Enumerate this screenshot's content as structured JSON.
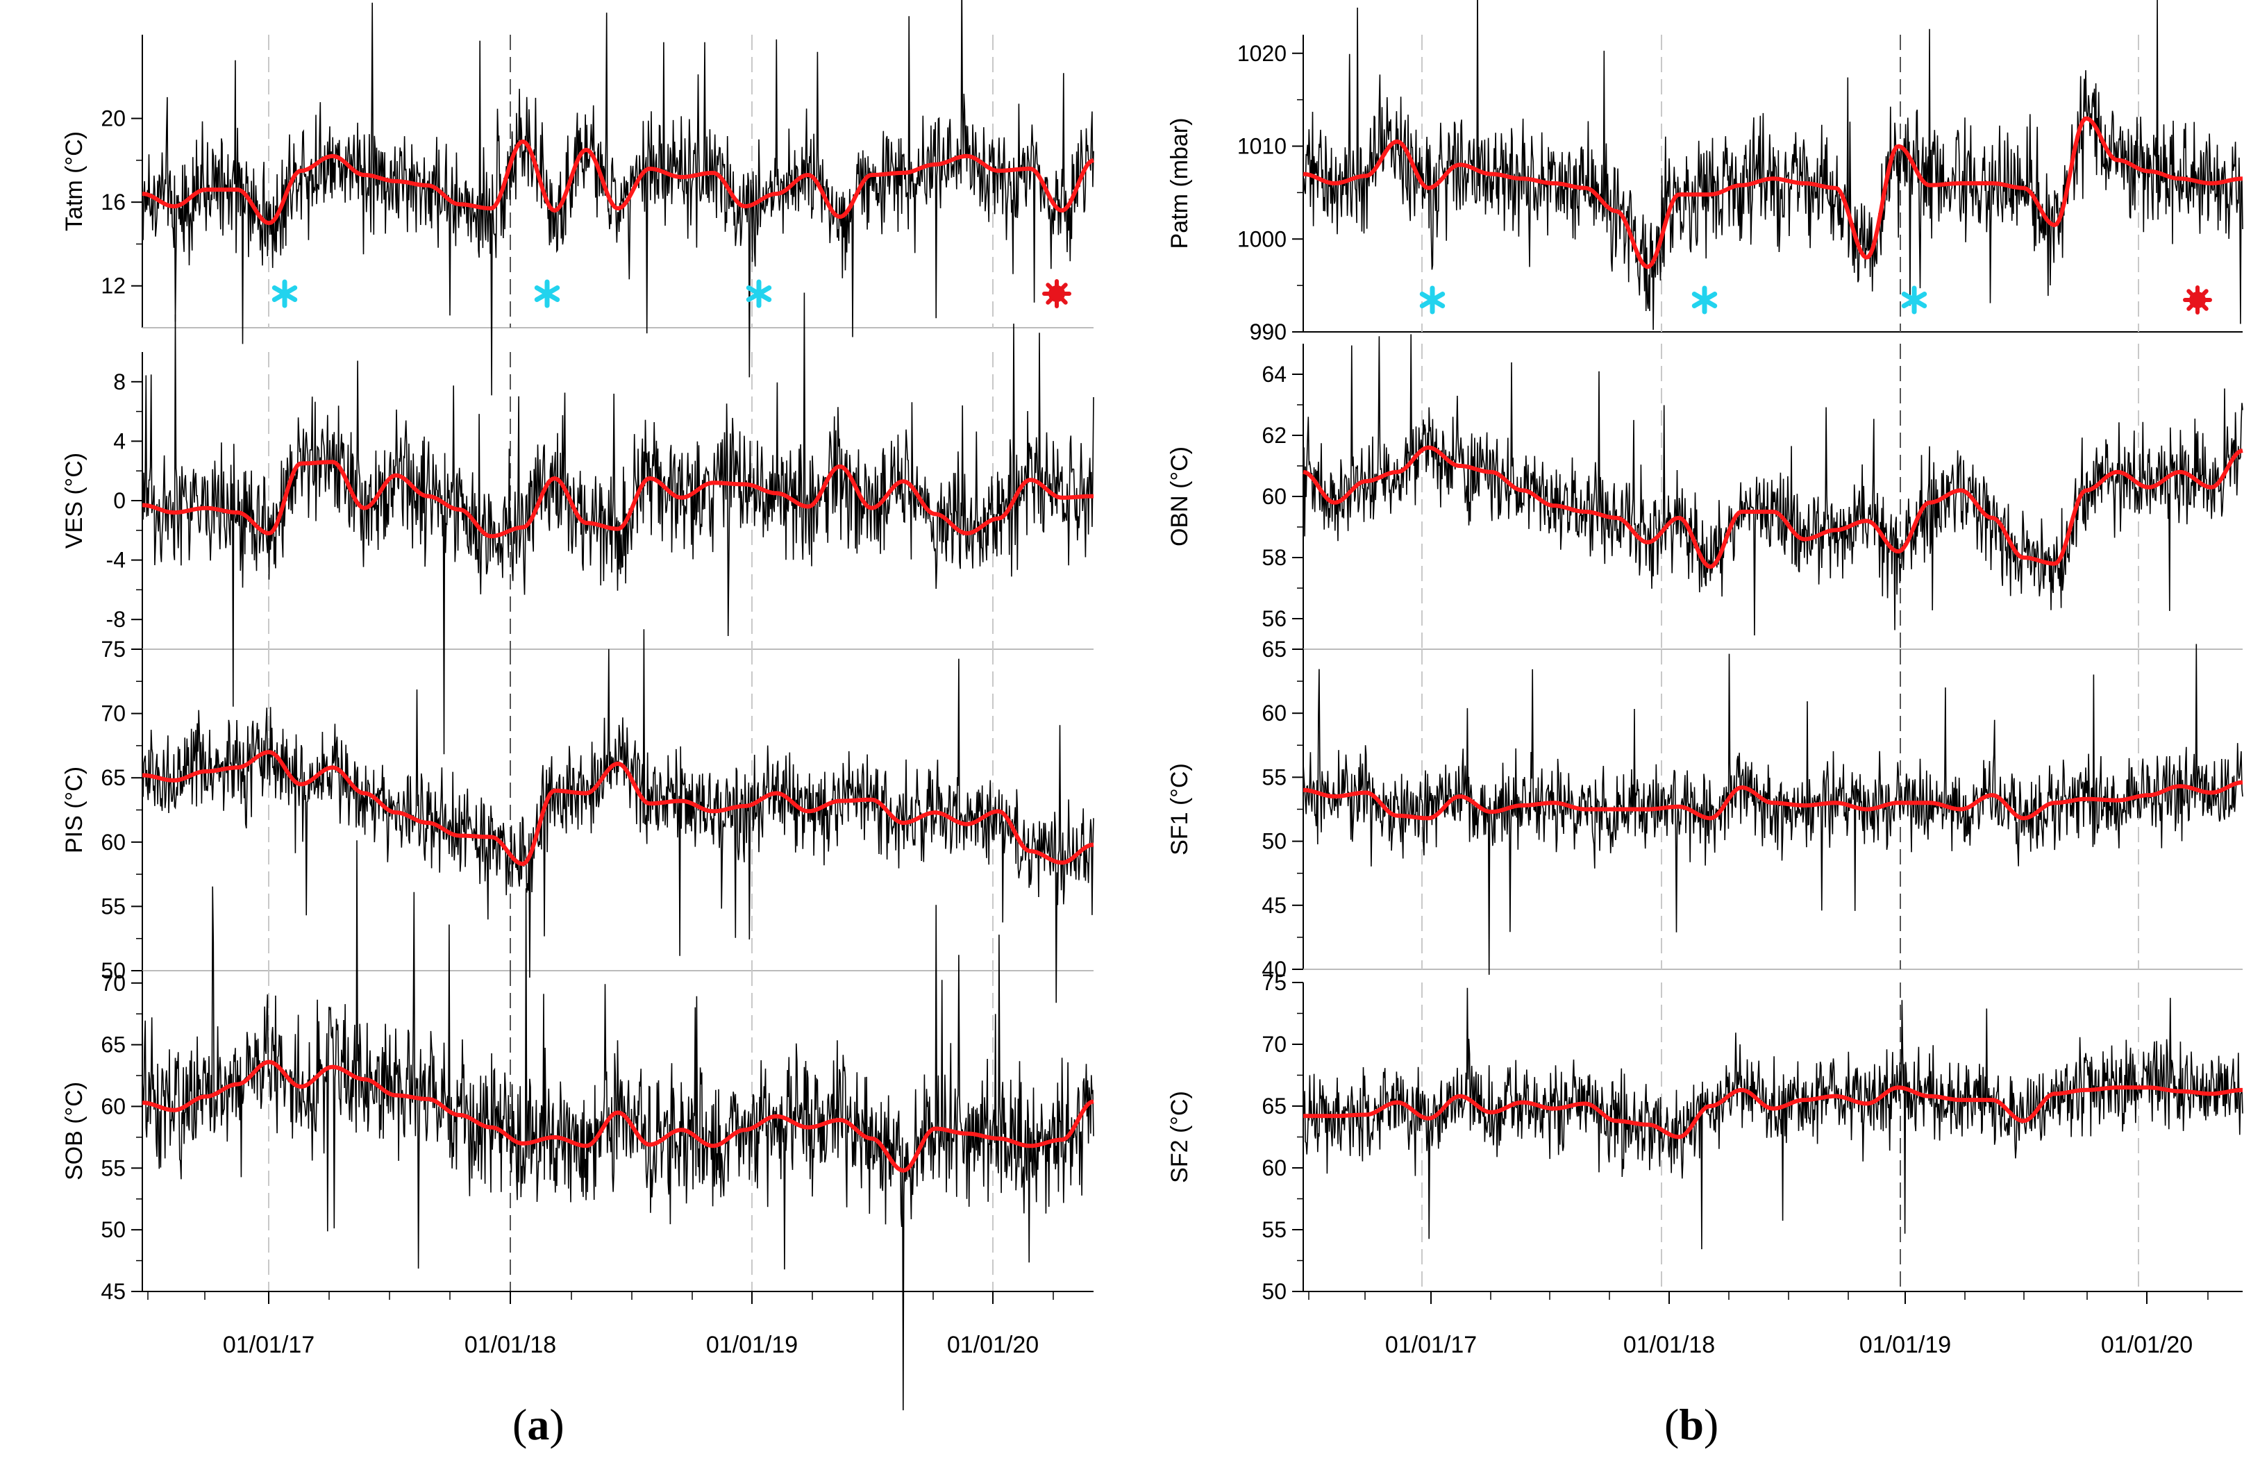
{
  "figure": {
    "panel_labels": [
      {
        "open": "(",
        "letter": "a",
        "close": ")"
      },
      {
        "open": "(",
        "letter": "b",
        "close": ")"
      }
    ]
  },
  "colors": {
    "raw": "#000000",
    "smooth": "#ff1a1a",
    "cyan_marker": "#22d3ee",
    "red_marker": "#e8141c",
    "event_line": "#555555"
  },
  "chart_data": [
    {
      "type": "line",
      "panel": "a",
      "ylabel": "Tatm (°C)",
      "ylim": [
        10,
        24
      ],
      "yticks": [
        12,
        16,
        20
      ],
      "base": 16.6,
      "amp": 1.8,
      "smooth_knots": [
        16.4,
        15.8,
        16.6,
        16.6,
        15,
        17.5,
        18.2,
        17.3,
        17,
        16.8,
        15.9,
        15.7,
        18.9,
        15.6,
        18.5,
        15.7,
        17.6,
        17.2,
        17.4,
        15.8,
        16.4,
        17.3,
        15.3,
        17.3,
        17.4,
        17.8,
        18.2,
        17.5,
        17.6,
        15.6,
        18
      ]
    },
    {
      "type": "line",
      "panel": "a",
      "ylabel": "VES (°C)",
      "ylim": [
        -10,
        10
      ],
      "yticks": [
        -8,
        -4,
        0,
        4,
        8
      ],
      "base": 0,
      "amp": 2.8,
      "smooth_knots": [
        -0.3,
        -0.8,
        -0.5,
        -0.8,
        -2.2,
        2.5,
        2.6,
        -0.5,
        1.7,
        0.3,
        -0.6,
        -2.4,
        -1.8,
        1.5,
        -1.5,
        -1.9,
        1.5,
        0.2,
        1.2,
        1.1,
        0.5,
        -0.4,
        2.3,
        -0.5,
        1.3,
        -0.9,
        -2.2,
        -1.2,
        1.4,
        0.2,
        0.3
      ]
    },
    {
      "type": "line",
      "panel": "a",
      "ylabel": "PIS (°C)",
      "ylim": [
        50,
        75
      ],
      "yticks": [
        50,
        55,
        60,
        65,
        70,
        75
      ],
      "base": 63,
      "amp": 2.5,
      "smooth_knots": [
        65.2,
        64.8,
        65.5,
        65.8,
        67,
        64.5,
        65.8,
        63.8,
        62.3,
        61.5,
        60.5,
        60.4,
        58.3,
        64,
        63.8,
        66.1,
        63,
        63.2,
        62.4,
        62.8,
        63.8,
        62.4,
        63.2,
        63.3,
        61.5,
        62.3,
        61.4,
        62.4,
        59.3,
        58.4,
        59.8
      ]
    },
    {
      "type": "line",
      "panel": "a",
      "ylabel": "SOB (°C)",
      "ylim": [
        45,
        71
      ],
      "yticks": [
        45,
        50,
        55,
        60,
        65,
        70
      ],
      "base": 59,
      "amp": 3.8,
      "smooth_knots": [
        60.3,
        59.7,
        60.8,
        61.8,
        63.6,
        61.6,
        63.2,
        62.2,
        60.9,
        60.6,
        59.3,
        58.3,
        57,
        57.5,
        56.8,
        59.5,
        56.9,
        58.1,
        56.8,
        58.1,
        59.2,
        58.3,
        58.9,
        57.4,
        54.8,
        58.2,
        57.8,
        57.4,
        56.8,
        57.3,
        60.4
      ]
    },
    {
      "type": "line",
      "panel": "b",
      "ylabel": "Patm (mbar)",
      "ylim": [
        990,
        1022
      ],
      "yticks": [
        990,
        1000,
        1010,
        1020
      ],
      "base": 1006,
      "amp": 4.2,
      "smooth_knots": [
        1007,
        1006,
        1006.8,
        1010.5,
        1005.5,
        1008,
        1007,
        1006.5,
        1006,
        1005.5,
        1003,
        997,
        1004.8,
        1004.8,
        1005.8,
        1006.5,
        1006,
        1005.5,
        998,
        1010,
        1005.8,
        1006,
        1006,
        1005.5,
        1001.5,
        1013,
        1008.5,
        1007.3,
        1006.5,
        1006,
        1006.5
      ]
    },
    {
      "type": "line",
      "panel": "b",
      "ylabel": "OBN (°C)",
      "ylim": [
        55,
        65
      ],
      "yticks": [
        56,
        58,
        60,
        62,
        64
      ],
      "base": 59.8,
      "amp": 1.05,
      "smooth_knots": [
        60.8,
        59.8,
        60.5,
        60.8,
        61.6,
        61,
        60.8,
        60.2,
        59.7,
        59.5,
        59.3,
        58.5,
        59.3,
        57.7,
        59.5,
        59.5,
        58.6,
        58.9,
        59.2,
        58.2,
        59.8,
        60.2,
        59.3,
        58,
        57.8,
        60.2,
        60.8,
        60.3,
        60.8,
        60.3,
        61.5
      ]
    },
    {
      "type": "line",
      "panel": "b",
      "ylabel": "SF1 (°C)",
      "ylim": [
        40,
        65
      ],
      "yticks": [
        40,
        45,
        50,
        55,
        60,
        65
      ],
      "base": 53,
      "amp": 2.3,
      "smooth_knots": [
        54,
        53.5,
        53.8,
        52,
        51.8,
        53.5,
        52.3,
        52.8,
        53,
        52.5,
        52.5,
        52.5,
        52.7,
        51.8,
        54.2,
        53,
        52.8,
        53,
        52.5,
        53,
        53,
        52.5,
        53.6,
        51.8,
        53,
        53.3,
        53.2,
        53.6,
        54.3,
        53.8,
        54.6
      ]
    },
    {
      "type": "line",
      "panel": "b",
      "ylabel": "SF2 (°C)",
      "ylim": [
        50,
        75
      ],
      "yticks": [
        50,
        55,
        60,
        65,
        70,
        75
      ],
      "base": 65,
      "amp": 2.5,
      "smooth_knots": [
        64.2,
        64.2,
        64.3,
        65.3,
        64,
        65.8,
        64.5,
        65.3,
        64.8,
        65.2,
        63.8,
        63.5,
        62.5,
        65,
        66.3,
        64.8,
        65.5,
        65.8,
        65.2,
        66.5,
        65.8,
        65.5,
        65.5,
        63.8,
        66,
        66.3,
        66.5,
        66.5,
        66.2,
        66,
        66.3
      ]
    }
  ],
  "x_axis": {
    "tick_labels": [
      "01/01/17",
      "01/01/18",
      "01/01/19",
      "01/01/20"
    ]
  }
}
